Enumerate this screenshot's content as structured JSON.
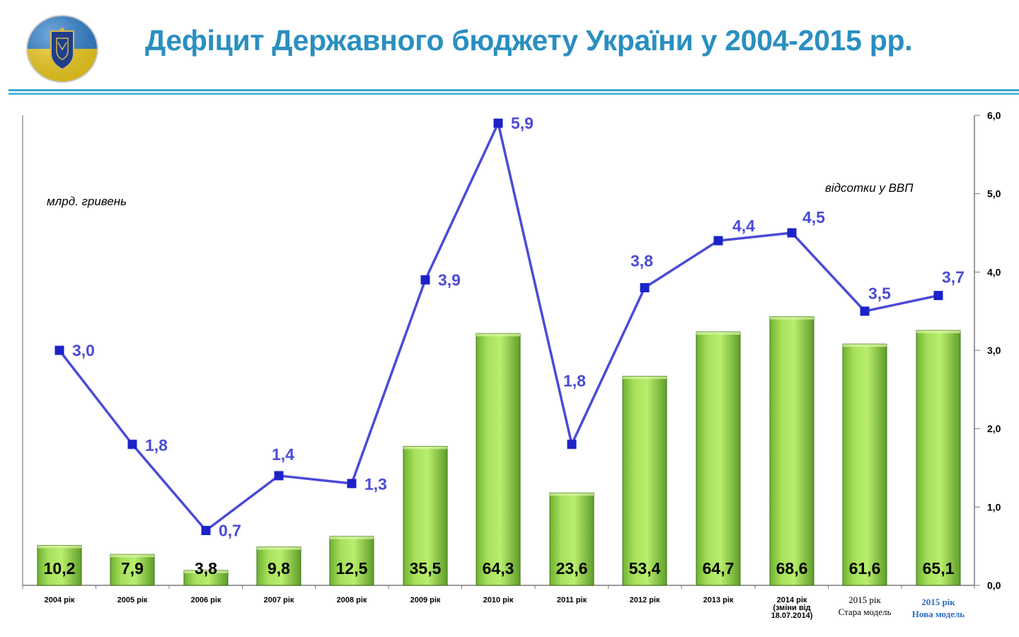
{
  "title": "Дефіцит Державного бюджету України у 2004-2015 рр.",
  "colors": {
    "title": "#2a8fbf",
    "bar_fill_light": "#b6ec6a",
    "bar_fill_dark": "#5fa22a",
    "line": "#4b4bd6",
    "marker": "#1b22c8",
    "divider": "#3aa7d4"
  },
  "logo": {
    "icon": "university-emblem-icon",
    "colors": [
      "#f7d21a",
      "#2a7fd0"
    ]
  },
  "chart_data": {
    "type": "bar",
    "categories": [
      [
        "2004 рік"
      ],
      [
        "2005 рік"
      ],
      [
        "2006 рік"
      ],
      [
        "2007 рік"
      ],
      [
        "2008 рік"
      ],
      [
        "2009 рік"
      ],
      [
        "2010 рік"
      ],
      [
        "2011 рік"
      ],
      [
        "2012 рік"
      ],
      [
        "2013 рік"
      ],
      [
        "2014 рік",
        "(зміни від",
        "18.07.2014)"
      ],
      [
        "2015 рік",
        "Стара модель"
      ],
      [
        "2015 рік",
        "Нова модель"
      ]
    ],
    "category_styles": [
      "bold",
      "bold",
      "bold",
      "bold",
      "bold",
      "bold",
      "bold",
      "bold",
      "bold",
      "bold",
      "bold",
      "serif",
      "serif-blue"
    ],
    "left_axis_label": "млрд. гривень",
    "right_axis_label": "відсотки у ВВП",
    "bars": {
      "values": [
        10.2,
        7.9,
        3.8,
        9.8,
        12.5,
        35.5,
        64.3,
        23.6,
        53.4,
        64.7,
        68.6,
        61.6,
        65.1
      ],
      "labels": [
        "10,2",
        "7,9",
        "3,8",
        "9,8",
        "12,5",
        "35,5",
        "64,3",
        "23,6",
        "53,4",
        "64,7",
        "68,6",
        "61,6",
        "65,1"
      ]
    },
    "line": {
      "values": [
        3.0,
        1.8,
        0.7,
        1.4,
        1.3,
        3.9,
        5.9,
        1.8,
        3.8,
        4.4,
        4.5,
        3.5,
        3.7
      ],
      "labels": [
        "3,0",
        "1,8",
        "0,7",
        "1,4",
        "1,3",
        "3,9",
        "5,9",
        "1,8",
        "3,8",
        "4,4",
        "4,5",
        "3,5",
        "3,7"
      ]
    },
    "right_axis": {
      "ticks": [
        0,
        1,
        2,
        3,
        4,
        5,
        6
      ],
      "tick_labels": [
        "0,0",
        "1,0",
        "2,0",
        "3,0",
        "4,0",
        "5,0",
        "6,0"
      ],
      "ylim": [
        0,
        6
      ]
    },
    "left_axis_ylim": [
      0,
      120
    ]
  }
}
